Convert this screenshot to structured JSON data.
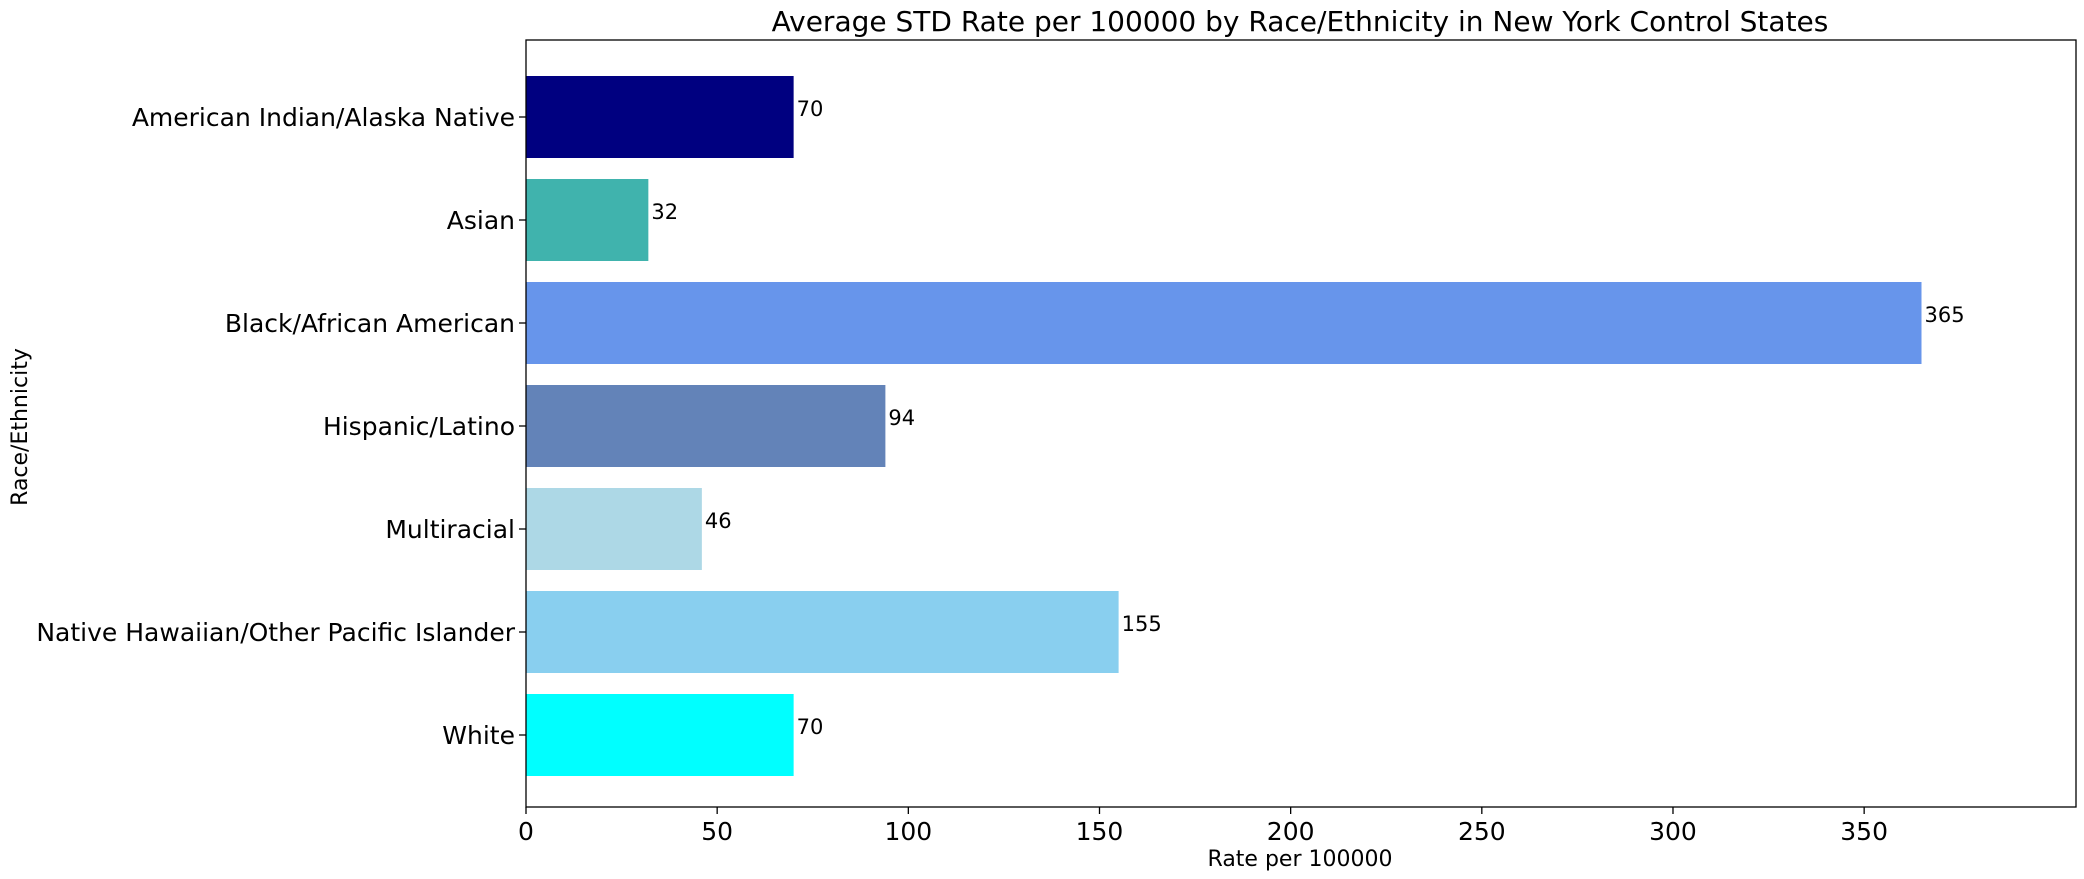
{
  "chart_data": {
    "type": "bar",
    "orientation": "horizontal",
    "title": "Average STD Rate per 100000 by Race/Ethnicity in New York Control States",
    "xlabel": "Rate per 100000",
    "ylabel": "Race/Ethnicity",
    "xlim": [
      0,
      383
    ],
    "xticks": [
      0,
      50,
      100,
      150,
      200,
      250,
      300,
      350
    ],
    "grid": false,
    "legend": "none",
    "categories": [
      "American Indian/Alaska Native",
      "Asian",
      "Black/African American",
      "Hispanic/Latino",
      "Multiracial",
      "Native Hawaiian/Other Pacific Islander",
      "White"
    ],
    "values": [
      70,
      32,
      365,
      94,
      46,
      155,
      70
    ],
    "data_labels": [
      "70",
      "32",
      "365",
      "94",
      "46",
      "155",
      "70"
    ],
    "colors": [
      "#000080",
      "#40b3ad",
      "#6795eb",
      "#6383b8",
      "#add8e6",
      "#89cfef",
      "#00ffff"
    ]
  }
}
